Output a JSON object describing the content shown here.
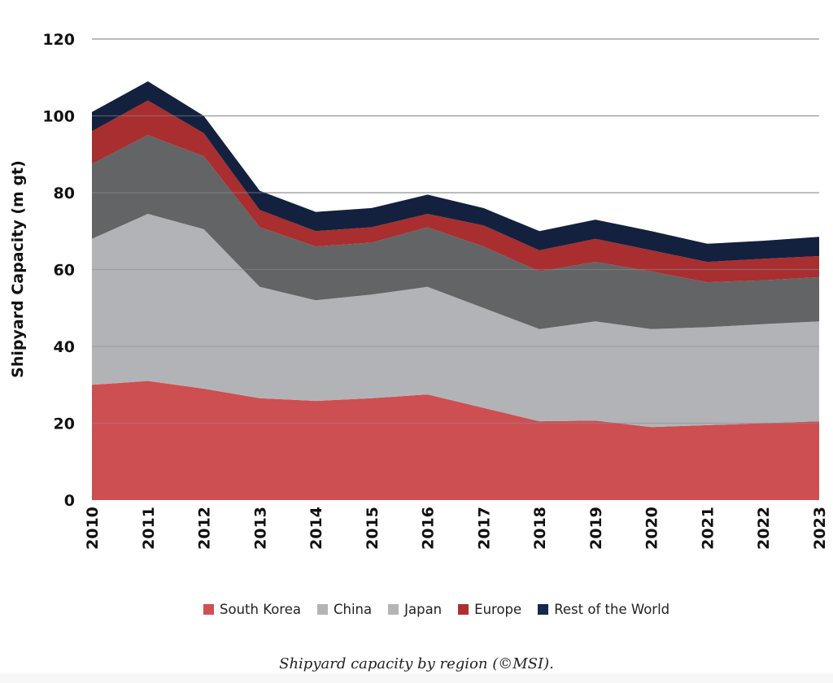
{
  "chart_data": {
    "type": "area",
    "stacked": true,
    "title": "",
    "xlabel": "",
    "ylabel": "Shipyard Capacity (m gt)",
    "ylim": [
      0,
      120
    ],
    "yticks": [
      0,
      20,
      40,
      60,
      80,
      100,
      120
    ],
    "grid": true,
    "legend_position": "bottom",
    "categories": [
      "2010",
      "2011",
      "2012",
      "2013",
      "2014",
      "2015",
      "2016",
      "2017",
      "2018",
      "2019",
      "2020",
      "2021",
      "2022",
      "2023"
    ],
    "series": [
      {
        "name": "South Korea",
        "color": "#cd4f52",
        "values": [
          30,
          31,
          29,
          26.5,
          25.8,
          26.5,
          27.5,
          24,
          20.5,
          20.7,
          19,
          19.5,
          20,
          20.5
        ]
      },
      {
        "name": "China",
        "color": "#b2b3b7",
        "values": [
          38,
          43.5,
          41.5,
          29,
          26.2,
          27,
          28,
          26,
          24,
          25.8,
          25.5,
          25.5,
          25.8,
          26
        ]
      },
      {
        "name": "Japan",
        "color": "#636465",
        "values": [
          19.5,
          20.5,
          19,
          15.5,
          14,
          13.5,
          15.5,
          16,
          15,
          15.5,
          15,
          11.7,
          11.4,
          11.5
        ]
      },
      {
        "name": "Europe",
        "color": "#a92e2f",
        "values": [
          8.5,
          9,
          6,
          4.5,
          4,
          4,
          3.5,
          5.5,
          5.5,
          6,
          5.5,
          5.3,
          5.6,
          5.5
        ]
      },
      {
        "name": "Rest of the World",
        "color": "#13213f",
        "values": [
          5,
          5,
          4.5,
          5,
          5,
          5,
          5,
          4.5,
          5,
          5,
          5,
          4.7,
          4.7,
          5
        ]
      }
    ],
    "legend_swatch_colors": [
      "#d24f53",
      "#b4b4b4",
      "#b4b4b4",
      "#b02f31",
      "#13294d"
    ]
  },
  "caption": "Shipyard capacity by region (©MSI)."
}
